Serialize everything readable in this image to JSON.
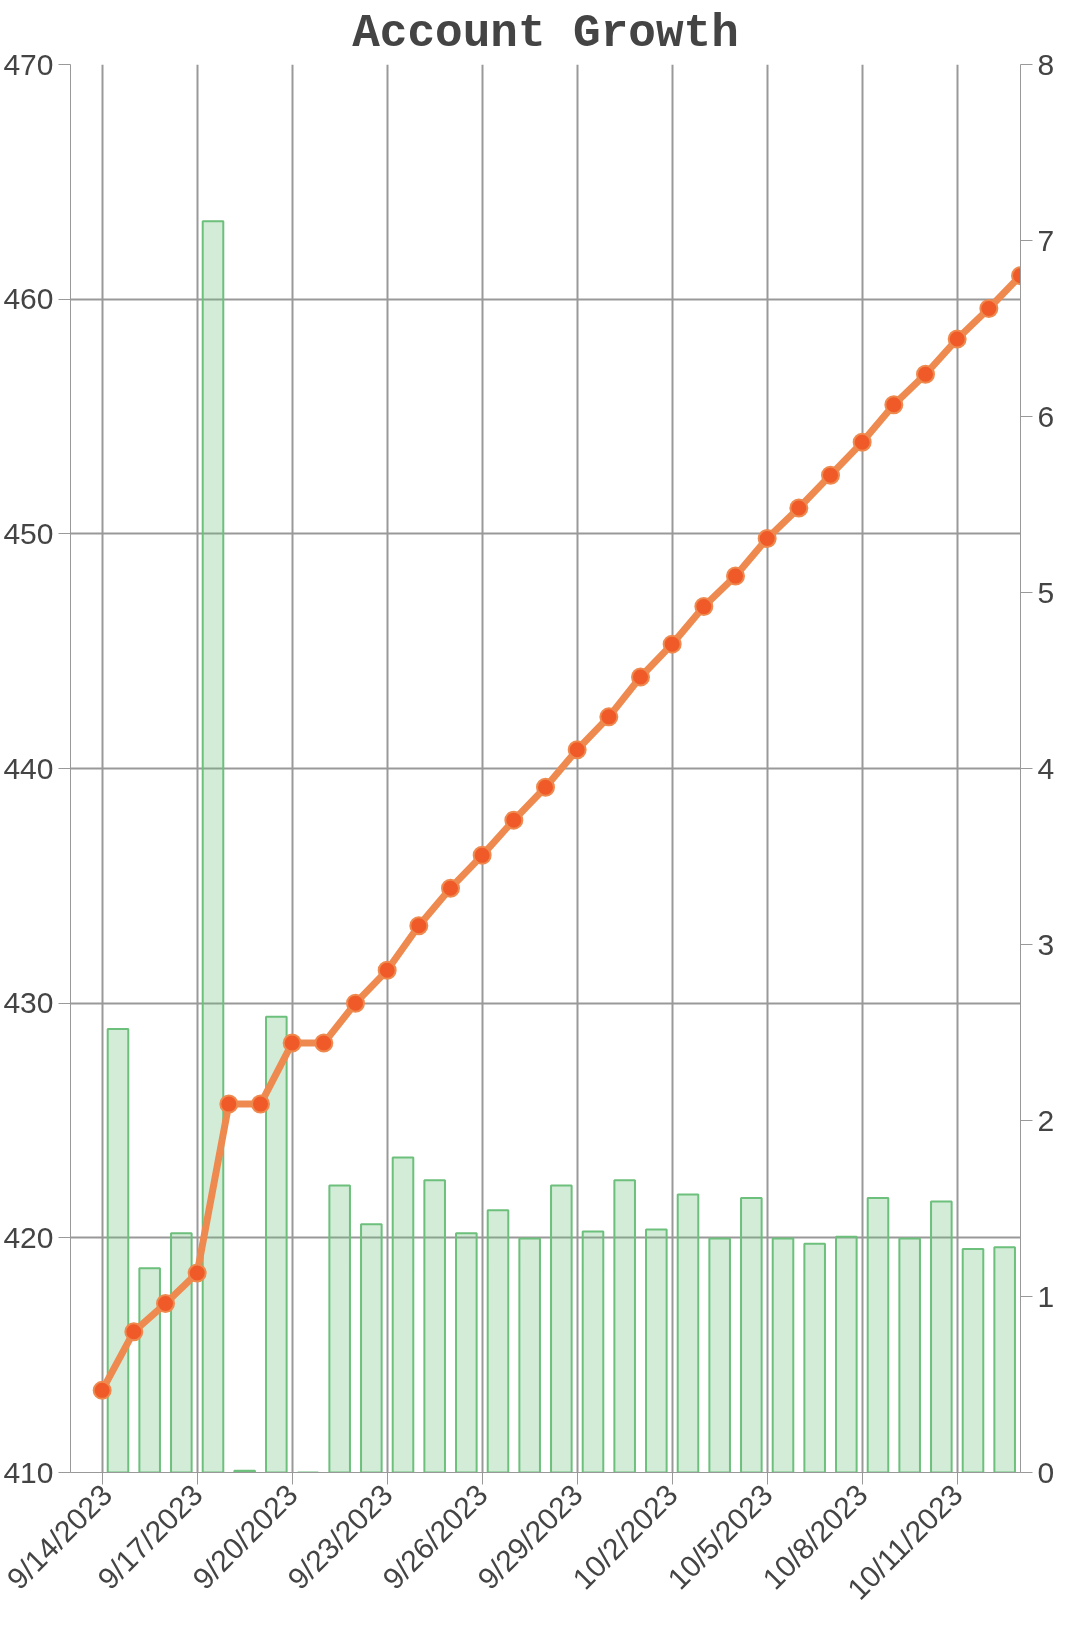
{
  "chart_data": {
    "type": "line",
    "title": "Account Growth",
    "x": [
      "2023-09-14",
      "2023-09-15",
      "2023-09-16",
      "2023-09-17",
      "2023-09-18",
      "2023-09-19",
      "2023-09-20",
      "2023-09-21",
      "2023-09-22",
      "2023-09-23",
      "2023-09-24",
      "2023-09-25",
      "2023-09-26",
      "2023-09-27",
      "2023-09-28",
      "2023-09-29",
      "2023-09-30",
      "2023-10-01",
      "2023-10-02",
      "2023-10-03",
      "2023-10-04",
      "2023-10-05",
      "2023-10-06",
      "2023-10-07",
      "2023-10-08",
      "2023-10-09",
      "2023-10-10",
      "2023-10-11",
      "2023-10-12",
      "2023-10-13"
    ],
    "series": [
      {
        "type": "bar",
        "axis": "y2",
        "color": "#6cc07c",
        "x": [
          "2023-09-14T12:00",
          "2023-09-15T12:00",
          "2023-09-16T12:00",
          "2023-09-17T12:00",
          "2023-09-18T12:00",
          "2023-09-19T12:00",
          "2023-09-20T12:00",
          "2023-09-21T12:00",
          "2023-09-22T12:00",
          "2023-09-23T12:00",
          "2023-09-24T12:00",
          "2023-09-25T12:00",
          "2023-09-26T12:00",
          "2023-09-27T12:00",
          "2023-09-28T12:00",
          "2023-09-29T12:00",
          "2023-09-30T12:00",
          "2023-10-01T12:00",
          "2023-10-02T12:00",
          "2023-10-03T12:00",
          "2023-10-04T12:00",
          "2023-10-05T12:00",
          "2023-10-06T12:00",
          "2023-10-07T12:00",
          "2023-10-08T12:00",
          "2023-10-09T12:00",
          "2023-10-10T12:00",
          "2023-10-11T12:00",
          "2023-10-12T12:00"
        ],
        "values": [
          2.52,
          1.16,
          1.36,
          7.11,
          0.01,
          2.59,
          0.0,
          1.63,
          1.41,
          1.79,
          1.66,
          1.36,
          1.49,
          1.33,
          1.63,
          1.37,
          1.66,
          1.38,
          1.58,
          1.33,
          1.56,
          1.33,
          1.3,
          1.34,
          1.56,
          1.33,
          1.54,
          1.27,
          1.28
        ]
      },
      {
        "color": "#ee8a4f",
        "values": [
          413.5,
          416.0,
          417.2,
          418.5,
          425.7,
          425.7,
          428.3,
          428.3,
          430.0,
          431.4,
          433.3,
          434.9,
          436.3,
          437.8,
          439.2,
          440.8,
          442.2,
          443.9,
          445.3,
          446.9,
          448.2,
          449.8,
          451.1,
          452.5,
          453.9,
          455.5,
          456.8,
          458.3,
          459.6,
          461.0
        ]
      }
    ],
    "marker": "circle",
    "line_style": "solid",
    "grid": true,
    "xlim": [
      "2023-09-13",
      "2023-10-13"
    ],
    "xticks": [
      {
        "value": "2023-09-14",
        "label": "9/14/2023"
      },
      {
        "value": "2023-09-17",
        "label": "9/17/2023"
      },
      {
        "value": "2023-09-20",
        "label": "9/20/2023"
      },
      {
        "value": "2023-09-23",
        "label": "9/23/2023"
      },
      {
        "value": "2023-09-26",
        "label": "9/26/2023"
      },
      {
        "value": "2023-09-29",
        "label": "9/29/2023"
      },
      {
        "value": "2023-10-02",
        "label": "10/2/2023"
      },
      {
        "value": "2023-10-05",
        "label": "10/5/2023"
      },
      {
        "value": "2023-10-08",
        "label": "10/8/2023"
      },
      {
        "value": "2023-10-11",
        "label": "10/11/2023"
      }
    ],
    "ylim": [
      410,
      470
    ],
    "yticks": [
      410,
      420,
      430,
      440,
      450,
      460,
      470
    ],
    "y2lim": [
      0,
      8
    ],
    "y2ticks": [
      0,
      1,
      2,
      3,
      4,
      5,
      6,
      7,
      8
    ]
  }
}
